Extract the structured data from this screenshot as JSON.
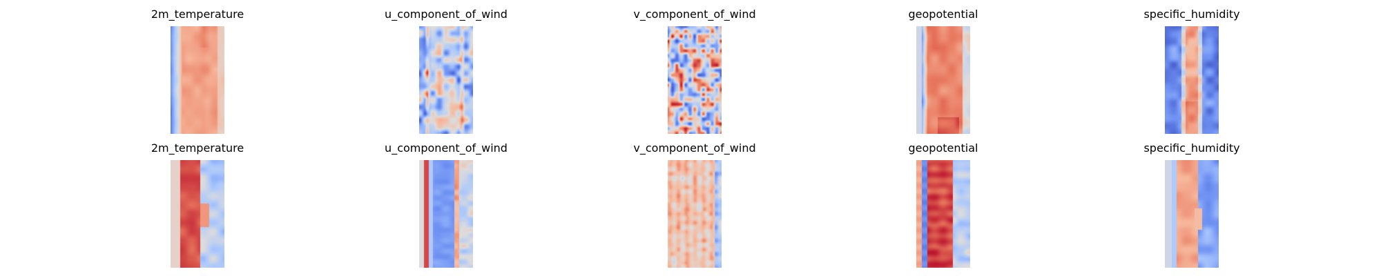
{
  "colormap": {
    "name": "coolwarm",
    "stops": [
      "#3b4cc0",
      "#6f92f3",
      "#aac7fd",
      "#dddcdc",
      "#f7b89c",
      "#e7745b",
      "#b40426"
    ]
  },
  "chart_data": {
    "type": "heatmap",
    "grid": {
      "rows": 2,
      "columns": 5
    },
    "axes": "off",
    "panels": [
      {
        "row": 0,
        "variable": "2m_temperature",
        "title": "2m_temperature",
        "pattern": "temp_a"
      },
      {
        "row": 0,
        "variable": "u_component_of_wind",
        "title": "u_component_of_wind",
        "pattern": "u_a"
      },
      {
        "row": 0,
        "variable": "v_component_of_wind",
        "title": "v_component_of_wind",
        "pattern": "v_a"
      },
      {
        "row": 0,
        "variable": "geopotential",
        "title": "geopotential",
        "pattern": "geo_a"
      },
      {
        "row": 0,
        "variable": "specific_humidity",
        "title": "specific_humidity",
        "pattern": "hum_a"
      },
      {
        "row": 1,
        "variable": "2m_temperature",
        "title": "2m_temperature",
        "pattern": "temp_b"
      },
      {
        "row": 1,
        "variable": "u_component_of_wind",
        "title": "u_component_of_wind",
        "pattern": "u_b"
      },
      {
        "row": 1,
        "variable": "v_component_of_wind",
        "title": "v_component_of_wind",
        "pattern": "v_b"
      },
      {
        "row": 1,
        "variable": "geopotential",
        "title": "geopotential",
        "pattern": "geo_b"
      },
      {
        "row": 1,
        "variable": "specific_humidity",
        "title": "specific_humidity",
        "pattern": "hum_b"
      }
    ]
  }
}
